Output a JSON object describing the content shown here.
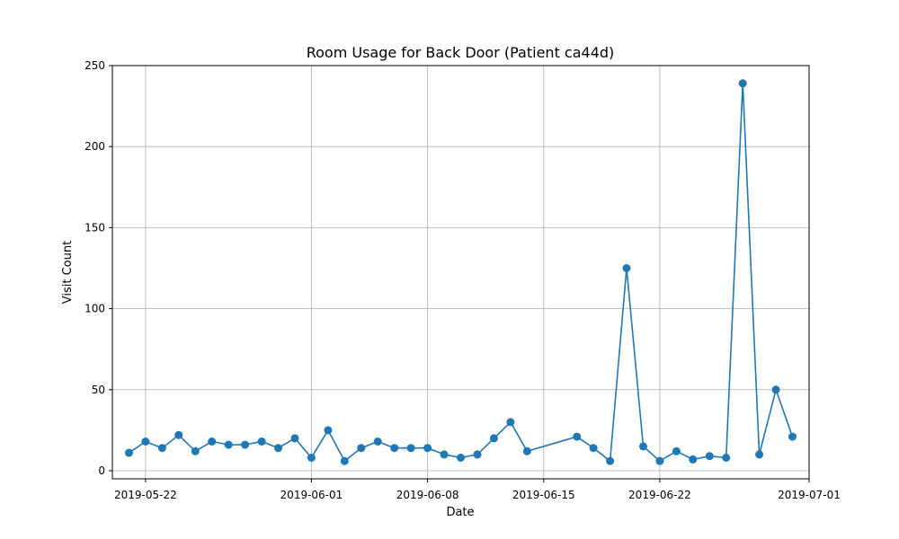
{
  "chart_data": {
    "type": "line",
    "title": "Room Usage for Back Door (Patient ca44d)",
    "xlabel": "Date",
    "ylabel": "Visit Count",
    "xlim": [
      "2019-05-20",
      "2019-07-01"
    ],
    "ylim": [
      -5,
      250
    ],
    "x_ticks": [
      "2019-05-22",
      "2019-06-01",
      "2019-06-08",
      "2019-06-15",
      "2019-06-22",
      "2019-07-01"
    ],
    "y_ticks": [
      0,
      50,
      100,
      150,
      200,
      250
    ],
    "grid": true,
    "color": "#1f77b4",
    "marker": "circle",
    "series": [
      {
        "x": [
          "2019-05-21",
          "2019-05-22",
          "2019-05-23",
          "2019-05-24",
          "2019-05-25",
          "2019-05-26",
          "2019-05-27",
          "2019-05-28",
          "2019-05-29",
          "2019-05-30",
          "2019-05-31",
          "2019-06-01",
          "2019-06-02",
          "2019-06-03",
          "2019-06-04",
          "2019-06-05",
          "2019-06-06",
          "2019-06-07",
          "2019-06-08",
          "2019-06-09",
          "2019-06-10",
          "2019-06-11",
          "2019-06-12",
          "2019-06-13",
          "2019-06-14",
          "2019-06-17",
          "2019-06-18",
          "2019-06-19",
          "2019-06-20",
          "2019-06-21",
          "2019-06-22",
          "2019-06-23",
          "2019-06-24",
          "2019-06-25",
          "2019-06-26",
          "2019-06-27",
          "2019-06-28",
          "2019-06-29",
          "2019-06-30"
        ],
        "y": [
          11,
          18,
          14,
          22,
          12,
          18,
          16,
          16,
          18,
          14,
          20,
          8,
          25,
          6,
          14,
          18,
          14,
          14,
          14,
          10,
          8,
          10,
          20,
          30,
          12,
          21,
          14,
          6,
          125,
          15,
          6,
          12,
          7,
          9,
          8,
          239,
          10,
          50,
          21
        ]
      }
    ]
  }
}
